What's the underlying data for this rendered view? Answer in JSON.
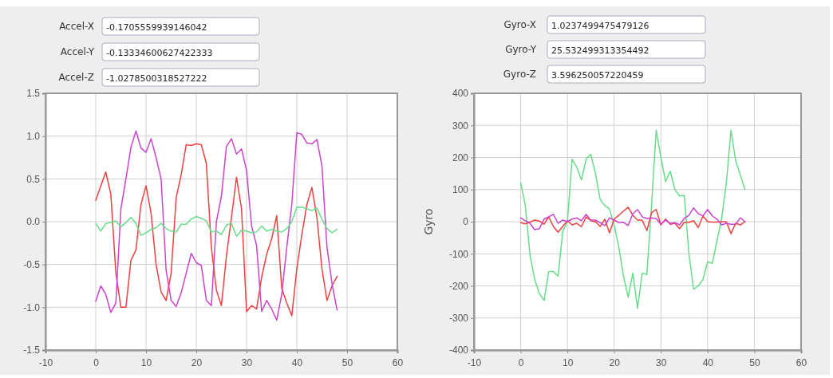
{
  "chart_data": [
    {
      "type": "line",
      "annotations": [
        "Accel-X",
        "-0.1705559939146042",
        "Accel-Y",
        "-0.13334600627422333",
        "Accel-Z",
        "-1.0278500318527222"
      ],
      "x": [
        0,
        1,
        2,
        3,
        4,
        5,
        6,
        7,
        8,
        9,
        10,
        11,
        12,
        13,
        14,
        15,
        16,
        17,
        18,
        19,
        20,
        21,
        22,
        23,
        24,
        25,
        26,
        27,
        28,
        29,
        30,
        31,
        32,
        33,
        34,
        35,
        36,
        37,
        38,
        39,
        40,
        41,
        42,
        43,
        44,
        45,
        46,
        47,
        48
      ],
      "series": [
        {
          "color": "#f04040",
          "values": [
            0.25,
            0.42,
            0.58,
            0.32,
            -0.6,
            -1.0,
            -1.0,
            -0.45,
            -0.33,
            0.2,
            0.42,
            0.1,
            -0.5,
            -0.82,
            -0.92,
            -0.6,
            0.28,
            0.55,
            0.9,
            0.89,
            0.91,
            0.9,
            0.68,
            -0.3,
            -0.8,
            -0.98,
            -0.4,
            0.05,
            0.52,
            0.15,
            -1.05,
            -0.98,
            -1.02,
            -0.65,
            -0.38,
            -0.2,
            0.07,
            -0.78,
            -0.95,
            -1.1,
            -0.55,
            -0.15,
            0.2,
            0.4,
            0.05,
            -0.55,
            -0.92,
            -0.75,
            -0.64
          ]
        },
        {
          "color": "#cc44cc",
          "values": [
            -0.93,
            -0.75,
            -0.85,
            -1.06,
            -0.95,
            0.15,
            0.5,
            0.87,
            1.06,
            0.86,
            0.81,
            0.97,
            0.75,
            0.5,
            -0.57,
            -0.92,
            -0.99,
            -0.83,
            -0.6,
            -0.37,
            -0.48,
            -0.51,
            -0.92,
            -0.98,
            0.0,
            0.3,
            0.88,
            0.97,
            0.79,
            0.85,
            0.6,
            -0.05,
            -0.28,
            -1.05,
            -0.92,
            -1.02,
            -1.15,
            -0.85,
            -0.3,
            0.2,
            1.04,
            1.02,
            0.92,
            0.91,
            0.96,
            0.65,
            -0.3,
            -0.72,
            -1.03
          ]
        },
        {
          "color": "#66dd88",
          "values": [
            -0.02,
            -0.11,
            -0.02,
            -0.01,
            0.01,
            -0.06,
            -0.01,
            0.05,
            -0.02,
            -0.16,
            -0.13,
            -0.09,
            -0.07,
            -0.02,
            -0.08,
            -0.11,
            -0.12,
            -0.03,
            -0.03,
            0.03,
            0.06,
            0.04,
            0.01,
            -0.12,
            -0.11,
            -0.15,
            -0.04,
            -0.02,
            -0.17,
            -0.1,
            -0.11,
            -0.13,
            -0.12,
            -0.05,
            -0.11,
            -0.09,
            -0.11,
            -0.12,
            -0.08,
            0.0,
            0.17,
            0.17,
            0.15,
            0.13,
            0.16,
            0.03,
            -0.08,
            -0.13,
            -0.09
          ]
        }
      ],
      "xlim": [
        -10,
        60
      ],
      "xticks": [
        -10,
        0,
        10,
        20,
        30,
        40,
        50,
        60
      ],
      "ylim": [
        -1.5,
        1.5
      ],
      "yticks": [
        {
          "value": -1.5,
          "label": "-1.5"
        },
        {
          "value": -1,
          "label": "-1.0"
        },
        {
          "value": -0.5,
          "label": "-0.5"
        },
        {
          "value": 0,
          "label": "0.0"
        },
        {
          "value": 0.5,
          "label": "0.5"
        },
        {
          "value": 1,
          "label": "1.0"
        },
        {
          "value": 1.5,
          "label": "1.5"
        }
      ],
      "grid": true,
      "marker": "none",
      "line_style": "solid"
    },
    {
      "type": "line",
      "ylabel": "Gyro",
      "annotations": [
        "Gyro-X",
        "1.0237499475479126",
        "Gyro-Y",
        "25.532499313354492",
        "Gyro-Z",
        "3.596250057220459"
      ],
      "x": [
        0,
        1,
        2,
        3,
        4,
        5,
        6,
        7,
        8,
        9,
        10,
        11,
        12,
        13,
        14,
        15,
        16,
        17,
        18,
        19,
        20,
        21,
        22,
        23,
        24,
        25,
        26,
        27,
        28,
        29,
        30,
        31,
        32,
        33,
        34,
        35,
        36,
        37,
        38,
        39,
        40,
        41,
        42,
        43,
        44,
        45,
        46,
        47,
        48
      ],
      "series": [
        {
          "color": "#66dd88",
          "values": [
            122,
            50,
            -105,
            -180,
            -225,
            -245,
            -155,
            -155,
            -170,
            -30,
            0,
            195,
            170,
            130,
            195,
            210,
            150,
            70,
            50,
            40,
            -10,
            -80,
            -170,
            -235,
            -160,
            -270,
            -160,
            -165,
            50,
            285,
            200,
            125,
            157,
            100,
            80,
            82,
            -100,
            -210,
            -200,
            -180,
            -125,
            -130,
            -60,
            10,
            120,
            285,
            190,
            145,
            100
          ]
        },
        {
          "color": "#f04040",
          "values": [
            -3,
            -7,
            -1,
            5,
            2,
            -8,
            15,
            -15,
            -33,
            -15,
            3,
            -10,
            -5,
            -15,
            15,
            3,
            0,
            -15,
            8,
            -35,
            8,
            20,
            33,
            45,
            20,
            5,
            5,
            -28,
            28,
            38,
            -10,
            8,
            -8,
            -5,
            -22,
            -2,
            -2,
            3,
            -18,
            18,
            0,
            -1,
            -1,
            0,
            0,
            -37,
            -5,
            -10,
            0
          ]
        },
        {
          "color": "#cc44cc",
          "values": [
            12,
            3,
            -5,
            -25,
            -22,
            8,
            15,
            23,
            -5,
            5,
            0,
            8,
            12,
            3,
            23,
            5,
            5,
            -3,
            -12,
            12,
            5,
            -3,
            -2,
            -12,
            25,
            38,
            15,
            10,
            12,
            10,
            -8,
            5,
            -5,
            -3,
            -10,
            10,
            20,
            43,
            25,
            18,
            38,
            18,
            8,
            -10,
            -5,
            -8,
            -8,
            12,
            0
          ]
        }
      ],
      "xlim": [
        -10,
        60
      ],
      "xticks": [
        -10,
        0,
        10,
        20,
        30,
        40,
        50,
        60
      ],
      "ylim": [
        -400,
        400
      ],
      "yticks": [
        -400,
        -300,
        -200,
        -100,
        0,
        100,
        200,
        300,
        400
      ],
      "grid": true,
      "marker": "none",
      "line_style": "solid"
    }
  ]
}
